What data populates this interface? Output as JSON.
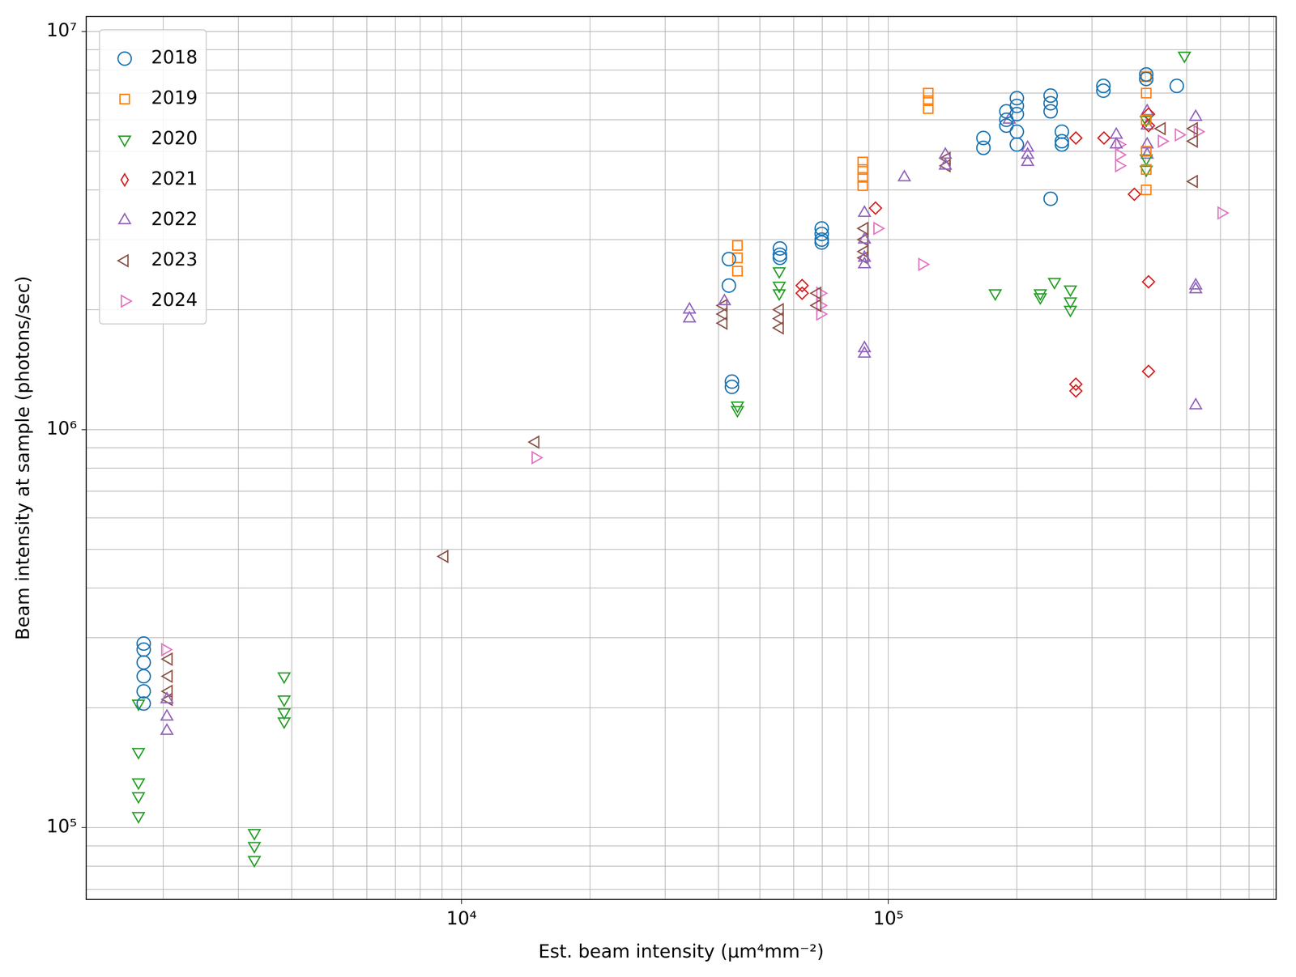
{
  "chart_data": {
    "type": "scatter",
    "x_label": "Est. beam intensity (μm⁴mm⁻²)",
    "y_label": "Beam intensity at sample (photons/sec)",
    "log": true,
    "grid": true,
    "legend": "upper left",
    "xlim": [
      1320,
      810000
    ],
    "ylim": [
      66000,
      10900000
    ],
    "xticks": [
      {
        "value": 10000,
        "label": "10⁴"
      },
      {
        "value": 100000,
        "label": "10⁵"
      }
    ],
    "yticks": [
      {
        "value": 100000,
        "label": "10⁵"
      },
      {
        "value": 1000000,
        "label": "10⁶"
      },
      {
        "value": 10000000,
        "label": "10⁷"
      }
    ],
    "series": [
      {
        "name": "2018",
        "color": "#1f77b4",
        "marker": "circle",
        "x": [
          1800,
          1800,
          1800,
          1800,
          1800,
          1800,
          42300,
          42300,
          43000,
          43000,
          55700,
          55700,
          55700,
          69800,
          69800,
          69800,
          69800,
          167000,
          167000,
          189000,
          189000,
          189000,
          200000,
          200000,
          200000,
          200000,
          200000,
          240000,
          240000,
          240000,
          240000,
          255000,
          255000,
          255000,
          319000,
          319000,
          402000,
          402000,
          474000
        ],
        "values": [
          290000,
          280000,
          260000,
          240000,
          220000,
          205000,
          2680000,
          2300000,
          1320000,
          1280000,
          2850000,
          2750000,
          2700000,
          3200000,
          3100000,
          3000000,
          2950000,
          5400000,
          5100000,
          6300000,
          6000000,
          5800000,
          6800000,
          6500000,
          6200000,
          5600000,
          5200000,
          6900000,
          6600000,
          6300000,
          3800000,
          5600000,
          5300000,
          5200000,
          7300000,
          7100000,
          7800000,
          7600000,
          7300000
        ]
      },
      {
        "name": "2019",
        "color": "#ff7f0e",
        "marker": "square",
        "x": [
          44300,
          44300,
          44300,
          87100,
          87100,
          87100,
          87100,
          124000,
          124000,
          124000,
          402000,
          402000,
          402000,
          402000,
          402000,
          402000
        ],
        "values": [
          2900000,
          2700000,
          2500000,
          4700000,
          4500000,
          4300000,
          4100000,
          7000000,
          6700000,
          6400000,
          7700000,
          7000000,
          6000000,
          5000000,
          4500000,
          4000000
        ]
      },
      {
        "name": "2020",
        "color": "#2ca02c",
        "marker": "triangle_down",
        "x": [
          1750,
          1750,
          1750,
          1750,
          1750,
          3270,
          3270,
          3270,
          3840,
          3840,
          3840,
          3840,
          44300,
          44300,
          55500,
          55500,
          55500,
          178000,
          227000,
          227000,
          245000,
          267000,
          267000,
          267000,
          402000,
          402000,
          402000,
          494000
        ],
        "values": [
          205000,
          155000,
          130000,
          120000,
          107000,
          97000,
          90000,
          83000,
          240000,
          210000,
          195000,
          185000,
          1150000,
          1120000,
          2500000,
          2300000,
          2200000,
          2200000,
          2200000,
          2150000,
          2350000,
          2250000,
          2100000,
          2000000,
          6000000,
          4800000,
          4500000,
          8700000
        ]
      },
      {
        "name": "2021",
        "color": "#d62728",
        "marker": "thin_diamond",
        "x": [
          62800,
          62800,
          93300,
          275000,
          275000,
          275000,
          320000,
          377000,
          407000,
          407000,
          407000,
          407000
        ],
        "values": [
          2300000,
          2200000,
          3600000,
          5400000,
          1300000,
          1250000,
          5400000,
          3900000,
          6200000,
          5800000,
          2350000,
          1400000
        ]
      },
      {
        "name": "2022",
        "color": "#9467bd",
        "marker": "triangle_up",
        "x": [
          2040,
          2040,
          2040,
          34200,
          34200,
          41300,
          87900,
          87900,
          87900,
          87900,
          87900,
          87900,
          109000,
          136000,
          136000,
          192000,
          212000,
          212000,
          212000,
          342000,
          342000,
          404000,
          404000,
          404000,
          404000,
          525000,
          525000,
          525000,
          525000
        ],
        "values": [
          210000,
          190000,
          175000,
          2000000,
          1900000,
          2100000,
          3500000,
          3000000,
          2700000,
          2600000,
          1600000,
          1550000,
          4300000,
          4900000,
          4600000,
          6000000,
          5100000,
          4900000,
          4700000,
          5500000,
          5200000,
          6300000,
          5800000,
          5200000,
          4900000,
          6100000,
          2300000,
          2250000,
          1150000
        ]
      },
      {
        "name": "2023",
        "color": "#8c564b",
        "marker": "triangle_left",
        "x": [
          2060,
          2060,
          2060,
          2060,
          9120,
          14900,
          41100,
          41100,
          41100,
          55700,
          55700,
          55700,
          68200,
          68200,
          87900,
          87900,
          87900,
          87900,
          137000,
          137000,
          437000,
          520000,
          520000,
          520000
        ],
        "values": [
          265000,
          240000,
          220000,
          210000,
          480000,
          930000,
          2050000,
          1950000,
          1850000,
          2000000,
          1900000,
          1800000,
          2200000,
          2050000,
          3200000,
          3000000,
          2800000,
          2700000,
          4800000,
          4600000,
          5700000,
          5700000,
          5300000,
          4200000
        ]
      },
      {
        "name": "2024",
        "color": "#e377c2",
        "marker": "triangle_right",
        "x": [
          2020,
          14900,
          69200,
          69200,
          69200,
          94200,
          120000,
          347000,
          347000,
          347000,
          437000,
          479000,
          530000,
          603000
        ],
        "values": [
          280000,
          850000,
          2200000,
          2050000,
          1950000,
          3200000,
          2600000,
          5200000,
          4900000,
          4600000,
          5300000,
          5500000,
          5600000,
          3500000
        ]
      }
    ]
  }
}
